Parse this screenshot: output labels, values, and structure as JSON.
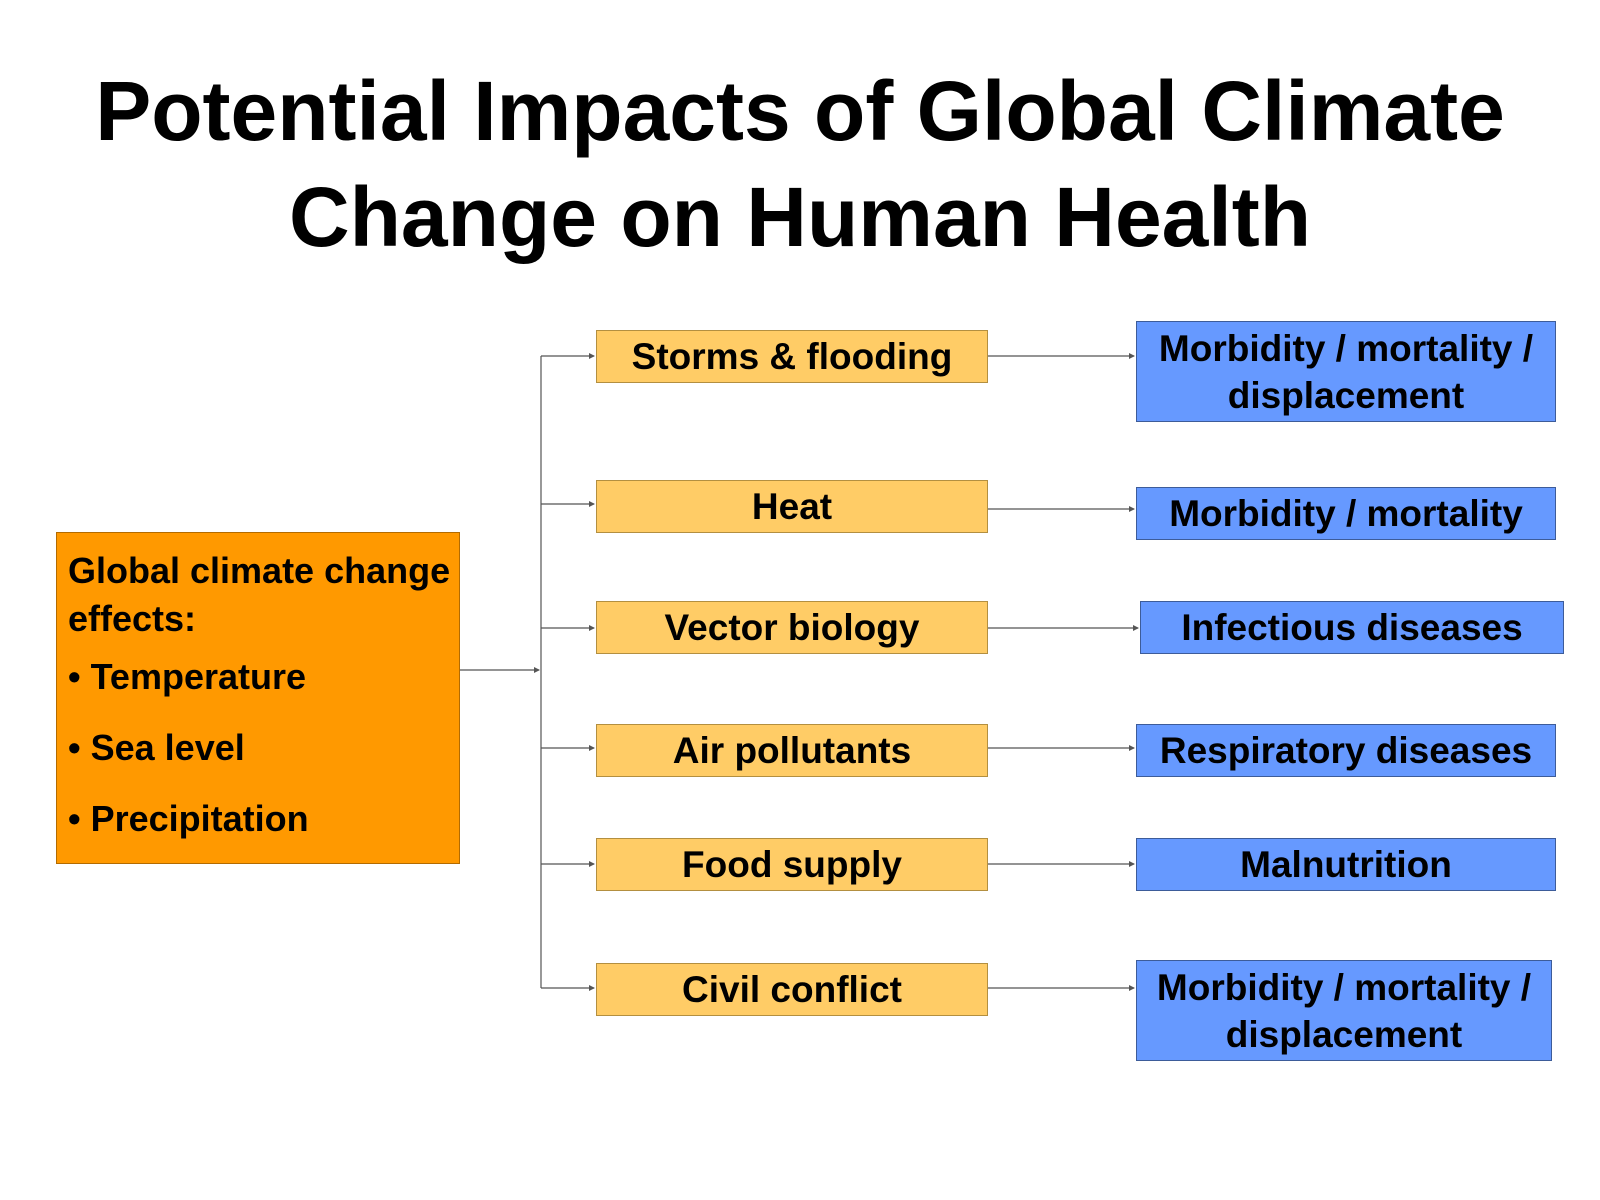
{
  "title": {
    "line1": "Potential Impacts of Global Climate",
    "line2": "Change on Human Health"
  },
  "source": {
    "heading": "Global climate change effects:",
    "effects": [
      "Temperature",
      "Sea level",
      "Precipitation"
    ]
  },
  "factors": [
    "Storms & flooding",
    "Heat",
    "Vector biology",
    "Air pollutants",
    "Food supply",
    "Civil conflict"
  ],
  "outcomes": [
    "Morbidity / mortality / displacement",
    "Morbidity / mortality",
    "Infectious diseases",
    "Respiratory diseases",
    "Malnutrition",
    "Morbidity / mortality / displacement"
  ],
  "colors": {
    "source_fill": "#ff9900",
    "factor_fill": "#ffcc66",
    "outcome_fill": "#6699ff",
    "connector": "#555555"
  }
}
